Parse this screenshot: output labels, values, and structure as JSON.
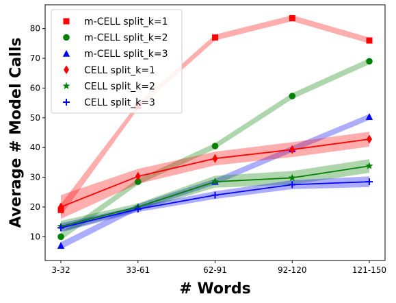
{
  "chart_data": {
    "type": "line",
    "title": "",
    "xlabel": "# Words",
    "ylabel": "Average # Model Calls",
    "categories": [
      "3-32",
      "33-61",
      "62-91",
      "92-120",
      "121-150"
    ],
    "ylim": [
      2,
      88
    ],
    "yticks": [
      10,
      20,
      30,
      40,
      50,
      60,
      70,
      80
    ],
    "grid": false,
    "legend_position": "top-left",
    "series": [
      {
        "name": "m-CELL split_k=1",
        "color": "#ff0000",
        "marker": "square",
        "show_line": false,
        "values": [
          19.0,
          54.0,
          77.0,
          83.5,
          76.0
        ],
        "band": [
          2.0,
          1.0,
          1.0,
          1.0,
          1.0
        ]
      },
      {
        "name": "m-CELL split_k=2",
        "color": "#008000",
        "marker": "circle",
        "show_line": false,
        "values": [
          10.0,
          28.5,
          40.5,
          57.3,
          69.0
        ],
        "band": [
          1.2,
          1.0,
          1.0,
          1.0,
          1.0
        ]
      },
      {
        "name": "m-CELL split_k=3",
        "color": "#0000ff",
        "marker": "triangle",
        "show_line": false,
        "values": [
          7.0,
          20.0,
          28.5,
          39.5,
          50.3
        ],
        "band": [
          1.2,
          1.0,
          1.0,
          1.0,
          1.0
        ]
      },
      {
        "name": "CELL split_k=1",
        "color": "#ff0000",
        "marker": "diamond",
        "show_line": true,
        "values": [
          20.0,
          30.3,
          36.3,
          39.3,
          42.8
        ],
        "band": [
          4.0,
          2.5,
          2.3,
          2.5,
          2.5
        ]
      },
      {
        "name": "CELL split_k=2",
        "color": "#008000",
        "marker": "star",
        "show_line": true,
        "values": [
          13.5,
          20.0,
          28.5,
          29.8,
          33.8
        ],
        "band": [
          1.8,
          1.2,
          2.0,
          2.3,
          2.3
        ]
      },
      {
        "name": "CELL split_k=3",
        "color": "#0000ff",
        "marker": "plus",
        "show_line": true,
        "values": [
          13.0,
          19.3,
          24.0,
          27.5,
          28.5
        ],
        "band": [
          1.5,
          1.0,
          1.3,
          1.5,
          1.8
        ]
      }
    ]
  }
}
